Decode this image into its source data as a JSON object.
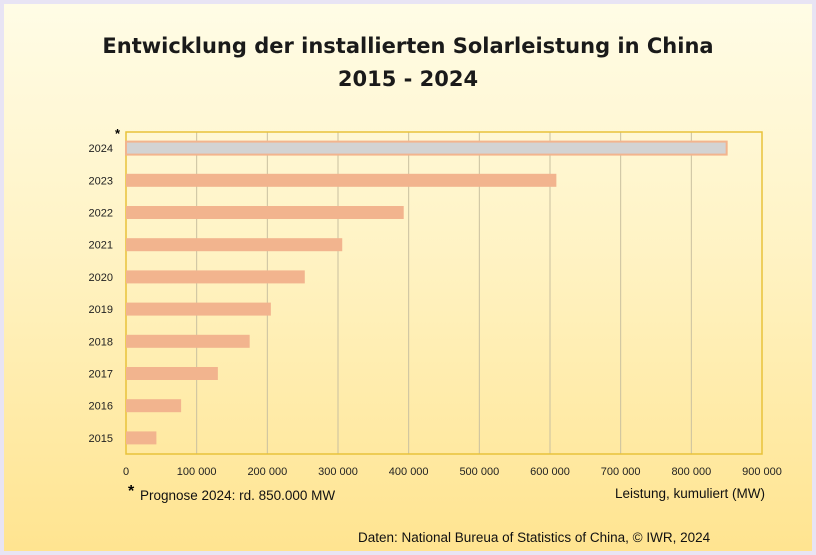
{
  "title_line1": "Entwicklung der installierten Solarleistung in China",
  "title_line2": "2015 - 2024",
  "footnote": "Prognose 2024: rd. 850.000 MW",
  "footnote_marker": "*",
  "source": "Daten: National Bureua of Statistics of China, © IWR, 2024",
  "colors": {
    "bar": "#f2b48e",
    "bar_forecast": "#d3d3d3",
    "bar_forecast_border": "#f2b48e",
    "plot_border": "#e8c23a"
  },
  "chart_data": {
    "type": "bar",
    "orientation": "horizontal",
    "categories": [
      "2015",
      "2016",
      "2017",
      "2018",
      "2019",
      "2020",
      "2021",
      "2022",
      "2023",
      "2024"
    ],
    "values": [
      43000,
      78000,
      130000,
      175000,
      205000,
      253000,
      306000,
      393000,
      609000,
      850000
    ],
    "xlabel": "Leistung, kumuliert (MW)",
    "xlim": [
      0,
      900000
    ],
    "xticks": [
      0,
      100000,
      200000,
      300000,
      400000,
      500000,
      600000,
      700000,
      800000,
      900000
    ],
    "xtick_labels": [
      "0",
      "100 000",
      "200 000",
      "300 000",
      "400 000",
      "500 000",
      "600 000",
      "700 000",
      "800 000",
      "900 000"
    ],
    "forecast_category": "2024",
    "grid": true
  }
}
